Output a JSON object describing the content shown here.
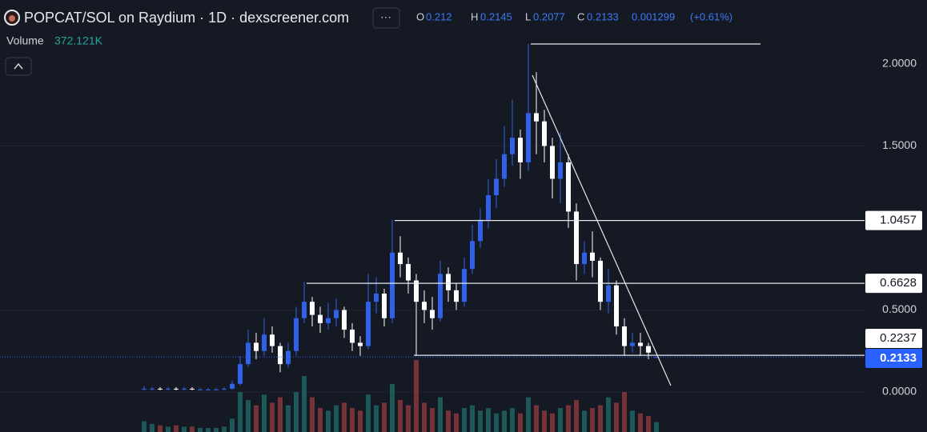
{
  "chart_data": {
    "type": "candlestick",
    "title": "POPCAT/SOL on Raydium · 1D · dexscreener.com",
    "ohlc_legend": {
      "o_key": "O",
      "o": 0.212,
      "h_key": "H",
      "h": 0.2145,
      "l_key": "L",
      "l": 0.2077,
      "c_key": "C",
      "c": 0.2133,
      "change": 0.001299,
      "change_pct": "(+0.61%)"
    },
    "volume_legend": {
      "label": "Volume",
      "value": 372121,
      "value_label": "372.121K"
    },
    "ylim": [
      -0.244,
      2.39
    ],
    "yticks": [
      {
        "value": 0,
        "label": "0.0000"
      },
      {
        "value": 0.5,
        "label": "0.5000"
      },
      {
        "value": 1.5,
        "label": "1.5000"
      },
      {
        "value": 2,
        "label": "2.0000"
      }
    ],
    "levels": [
      1.0457,
      0.6628,
      0.2237
    ],
    "last_price": 0.2133,
    "up_color": "#2f62e8",
    "down_color": "#ffffff",
    "volume_up_color": "#26a69a",
    "volume_down_color": "#ef5350",
    "vlim": [
      0,
      3000000
    ],
    "open": [
      0.02,
      0.02,
      0.02,
      0.015,
      0.02,
      0.015,
      0.02,
      0.015,
      0.015,
      0.015,
      0.015,
      0.02,
      0.05,
      0.17,
      0.3,
      0.25,
      0.35,
      0.28,
      0.17,
      0.25,
      0.45,
      0.55,
      0.47,
      0.42,
      0.45,
      0.5,
      0.38,
      0.3,
      0.28,
      0.55,
      0.6,
      0.45,
      0.85,
      0.78,
      0.68,
      0.55,
      0.5,
      0.45,
      0.72,
      0.62,
      0.55,
      0.75,
      0.92,
      1.05,
      1.2,
      1.3,
      1.45,
      1.55,
      1.4,
      1.7,
      1.65,
      1.5,
      1.3,
      1.4,
      1.1,
      0.78,
      0.85,
      0.8,
      0.55,
      0.65,
      0.4,
      0.28,
      0.3,
      0.28,
      0.212
    ],
    "high": [
      0.035,
      0.03,
      0.03,
      0.03,
      0.03,
      0.03,
      0.03,
      0.025,
      0.025,
      0.025,
      0.03,
      0.07,
      0.22,
      0.38,
      0.36,
      0.45,
      0.4,
      0.3,
      0.3,
      0.52,
      0.67,
      0.58,
      0.52,
      0.54,
      0.57,
      0.52,
      0.42,
      0.34,
      0.72,
      0.7,
      0.63,
      1.05,
      0.95,
      0.82,
      0.72,
      0.62,
      0.58,
      0.8,
      0.76,
      0.66,
      0.82,
      1.02,
      1.12,
      1.3,
      1.42,
      1.62,
      1.78,
      1.6,
      2.122,
      1.95,
      1.72,
      1.55,
      1.58,
      1.45,
      1.15,
      0.92,
      0.98,
      0.82,
      0.75,
      0.68,
      0.45,
      0.36,
      0.36,
      0.3,
      0.2145
    ],
    "low": [
      0.01,
      0.01,
      0.01,
      0.01,
      0.01,
      0.01,
      0.01,
      0.01,
      0.01,
      0.01,
      0.01,
      0.015,
      0.04,
      0.15,
      0.2,
      0.22,
      0.24,
      0.12,
      0.15,
      0.22,
      0.42,
      0.4,
      0.36,
      0.38,
      0.4,
      0.33,
      0.25,
      0.22,
      0.26,
      0.48,
      0.4,
      0.42,
      0.7,
      0.6,
      0.22,
      0.42,
      0.38,
      0.43,
      0.55,
      0.5,
      0.52,
      0.72,
      0.88,
      1.0,
      1.12,
      1.25,
      1.38,
      1.3,
      1.35,
      1.45,
      1.4,
      1.18,
      1.15,
      1.0,
      0.68,
      0.72,
      0.7,
      0.5,
      0.48,
      0.35,
      0.22,
      0.24,
      0.22,
      0.2,
      0.2077
    ],
    "close": [
      0.02,
      0.02,
      0.015,
      0.02,
      0.015,
      0.02,
      0.015,
      0.015,
      0.015,
      0.015,
      0.02,
      0.05,
      0.17,
      0.3,
      0.25,
      0.35,
      0.28,
      0.17,
      0.25,
      0.45,
      0.55,
      0.47,
      0.42,
      0.45,
      0.5,
      0.38,
      0.3,
      0.28,
      0.55,
      0.6,
      0.45,
      0.85,
      0.78,
      0.68,
      0.55,
      0.5,
      0.45,
      0.72,
      0.62,
      0.55,
      0.75,
      0.92,
      1.05,
      1.2,
      1.3,
      1.45,
      1.55,
      1.4,
      1.7,
      1.65,
      1.5,
      1.3,
      1.4,
      1.1,
      0.78,
      0.85,
      0.8,
      0.55,
      0.65,
      0.4,
      0.28,
      0.3,
      0.28,
      0.24,
      0.2133
    ],
    "volume": [
      400000,
      300000,
      250000,
      200000,
      250000,
      200000,
      200000,
      150000,
      150000,
      150000,
      200000,
      500000,
      1500000,
      1200000,
      1000000,
      1400000,
      1100000,
      1300000,
      1000000,
      1500000,
      2100000,
      1300000,
      900000,
      800000,
      1000000,
      1100000,
      900000,
      800000,
      1400000,
      1000000,
      1100000,
      1800000,
      1200000,
      1000000,
      2700000,
      1100000,
      900000,
      1300000,
      800000,
      700000,
      900000,
      1000000,
      800000,
      900000,
      700000,
      800000,
      900000,
      700000,
      1300000,
      1000000,
      800000,
      700000,
      900000,
      1000000,
      1200000,
      800000,
      900000,
      1000000,
      1300000,
      1100000,
      1500000,
      800000,
      700000,
      600000,
      372121
    ]
  }
}
